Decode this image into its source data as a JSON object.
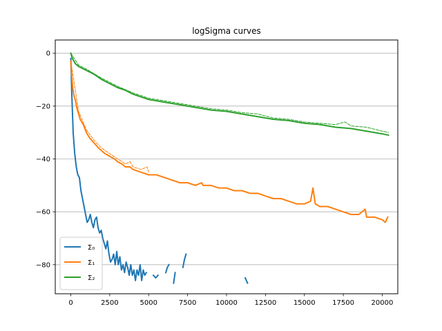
{
  "chart_data": {
    "type": "line",
    "title": "logSigma curves",
    "xlabel": "",
    "ylabel": "",
    "xlim": [
      -1000,
      21000
    ],
    "ylim": [
      -91,
      5
    ],
    "xticks": [
      0,
      2500,
      5000,
      7500,
      10000,
      12500,
      15000,
      17500,
      20000
    ],
    "xtick_labels": [
      "0",
      "2500",
      "5000",
      "7500",
      "10000",
      "12500",
      "15000",
      "17500",
      "20000"
    ],
    "yticks": [
      0,
      -20,
      -40,
      -60,
      -80
    ],
    "ytick_labels": [
      "0",
      "−20",
      "−40",
      "−60",
      "−80"
    ],
    "grid": "y-axis",
    "legend_position": "lower-left",
    "legend": [
      "Σ₀",
      "Σ₁",
      "Σ₂"
    ],
    "series": [
      {
        "name": "Σ₀",
        "color": "#1f77b4",
        "style": "solid",
        "segments": [
          [
            [
              0,
              -2
            ],
            [
              60,
              -15
            ],
            [
              150,
              -30
            ],
            [
              250,
              -38
            ],
            [
              350,
              -43
            ],
            [
              450,
              -46
            ],
            [
              550,
              -47
            ],
            [
              650,
              -52
            ],
            [
              750,
              -55
            ],
            [
              850,
              -58
            ],
            [
              950,
              -61
            ],
            [
              1050,
              -64
            ],
            [
              1150,
              -63
            ],
            [
              1250,
              -61
            ],
            [
              1350,
              -64
            ],
            [
              1450,
              -66
            ],
            [
              1550,
              -63
            ],
            [
              1650,
              -62
            ],
            [
              1750,
              -66
            ],
            [
              1850,
              -68
            ],
            [
              1950,
              -67
            ],
            [
              2050,
              -70
            ],
            [
              2150,
              -72
            ],
            [
              2250,
              -74
            ],
            [
              2350,
              -71
            ],
            [
              2450,
              -76
            ],
            [
              2550,
              -79
            ],
            [
              2650,
              -78
            ],
            [
              2750,
              -76
            ],
            [
              2850,
              -80
            ],
            [
              2950,
              -75
            ],
            [
              3050,
              -80
            ],
            [
              3150,
              -77
            ],
            [
              3250,
              -82
            ],
            [
              3350,
              -80
            ],
            [
              3450,
              -83
            ],
            [
              3550,
              -79
            ],
            [
              3650,
              -81
            ],
            [
              3750,
              -84
            ],
            [
              3850,
              -80
            ],
            [
              3950,
              -84
            ],
            [
              4050,
              -82
            ],
            [
              4150,
              -86
            ],
            [
              4250,
              -82
            ],
            [
              4350,
              -84
            ],
            [
              4450,
              -80
            ],
            [
              4550,
              -86
            ],
            [
              4650,
              -82
            ],
            [
              4750,
              -84
            ],
            [
              4850,
              -83
            ]
          ],
          [
            [
              5300,
              -84
            ],
            [
              5450,
              -85
            ],
            [
              5600,
              -84
            ]
          ],
          [
            [
              6100,
              -83
            ],
            [
              6200,
              -81
            ],
            [
              6300,
              -80
            ]
          ],
          [
            [
              6600,
              -87
            ],
            [
              6700,
              -83
            ]
          ],
          [
            [
              7200,
              -81
            ],
            [
              7300,
              -78
            ],
            [
              7400,
              -76
            ]
          ],
          [
            [
              11200,
              -85
            ],
            [
              11350,
              -87
            ]
          ]
        ]
      },
      {
        "name": "Σ₁",
        "color": "#ff7f0e",
        "style": "solid",
        "points": [
          [
            0,
            -3
          ],
          [
            50,
            -8
          ],
          [
            120,
            -13
          ],
          [
            200,
            -16
          ],
          [
            300,
            -18
          ],
          [
            400,
            -21
          ],
          [
            500,
            -23
          ],
          [
            600,
            -25
          ],
          [
            800,
            -27
          ],
          [
            1000,
            -30
          ],
          [
            1200,
            -32
          ],
          [
            1500,
            -34
          ],
          [
            1800,
            -36
          ],
          [
            2000,
            -37
          ],
          [
            2200,
            -38
          ],
          [
            2500,
            -39
          ],
          [
            2800,
            -40
          ],
          [
            3000,
            -41
          ],
          [
            3300,
            -42
          ],
          [
            3500,
            -43
          ],
          [
            3800,
            -43
          ],
          [
            4000,
            -44
          ],
          [
            4500,
            -45
          ],
          [
            5000,
            -46
          ],
          [
            5500,
            -46
          ],
          [
            6000,
            -47
          ],
          [
            6500,
            -48
          ],
          [
            7000,
            -49
          ],
          [
            7500,
            -49
          ],
          [
            8000,
            -50
          ],
          [
            8400,
            -49
          ],
          [
            8500,
            -50
          ],
          [
            9000,
            -50
          ],
          [
            9500,
            -51
          ],
          [
            10000,
            -51
          ],
          [
            10500,
            -52
          ],
          [
            11000,
            -52
          ],
          [
            11500,
            -53
          ],
          [
            12000,
            -53
          ],
          [
            12500,
            -54
          ],
          [
            13000,
            -55
          ],
          [
            13500,
            -55
          ],
          [
            14000,
            -56
          ],
          [
            14500,
            -57
          ],
          [
            15000,
            -57
          ],
          [
            15400,
            -56
          ],
          [
            15550,
            -51
          ],
          [
            15700,
            -57
          ],
          [
            16000,
            -58
          ],
          [
            16500,
            -58
          ],
          [
            17000,
            -59
          ],
          [
            17500,
            -60
          ],
          [
            18000,
            -61
          ],
          [
            18500,
            -61
          ],
          [
            18900,
            -59
          ],
          [
            19000,
            -62
          ],
          [
            19500,
            -62
          ],
          [
            20000,
            -63
          ],
          [
            20200,
            -64
          ],
          [
            20350,
            -62
          ]
        ]
      },
      {
        "name": "Σ₁ (dashed)",
        "color": "#ff7f0e",
        "style": "dashed",
        "points": [
          [
            0,
            -3
          ],
          [
            500,
            -22
          ],
          [
            1000,
            -29
          ],
          [
            1500,
            -33
          ],
          [
            2000,
            -36
          ],
          [
            2500,
            -38
          ],
          [
            3000,
            -40
          ],
          [
            3300,
            -41
          ],
          [
            3500,
            -42
          ],
          [
            3800,
            -41
          ],
          [
            4000,
            -43
          ],
          [
            4500,
            -44
          ],
          [
            4900,
            -43
          ],
          [
            5000,
            -45
          ]
        ]
      },
      {
        "name": "Σ₂",
        "color": "#2ca02c",
        "style": "solid",
        "points": [
          [
            0,
            0
          ],
          [
            100,
            -2
          ],
          [
            200,
            -3
          ],
          [
            300,
            -4
          ],
          [
            500,
            -5
          ],
          [
            1000,
            -6.5
          ],
          [
            1500,
            -8
          ],
          [
            2000,
            -10
          ],
          [
            2500,
            -11.5
          ],
          [
            3000,
            -13
          ],
          [
            3500,
            -14
          ],
          [
            4000,
            -15.5
          ],
          [
            4500,
            -16.5
          ],
          [
            5000,
            -17.5
          ],
          [
            6000,
            -18.5
          ],
          [
            7000,
            -19.5
          ],
          [
            8000,
            -20.5
          ],
          [
            9000,
            -21.5
          ],
          [
            10000,
            -22
          ],
          [
            11000,
            -23
          ],
          [
            12000,
            -24
          ],
          [
            13000,
            -25
          ],
          [
            14000,
            -25.5
          ],
          [
            15000,
            -26.5
          ],
          [
            16000,
            -27
          ],
          [
            17000,
            -28
          ],
          [
            18000,
            -28.5
          ],
          [
            19000,
            -29.5
          ],
          [
            20000,
            -30.5
          ],
          [
            20400,
            -31
          ]
        ]
      },
      {
        "name": "Σ₂ (dashed)",
        "color": "#2ca02c",
        "style": "dashed",
        "points": [
          [
            0,
            0
          ],
          [
            500,
            -4.5
          ],
          [
            1000,
            -6
          ],
          [
            2000,
            -9.5
          ],
          [
            3000,
            -12.5
          ],
          [
            4000,
            -15
          ],
          [
            5000,
            -17
          ],
          [
            6000,
            -18
          ],
          [
            7000,
            -19
          ],
          [
            8000,
            -20
          ],
          [
            9000,
            -21
          ],
          [
            10000,
            -21.5
          ],
          [
            11000,
            -22.5
          ],
          [
            12000,
            -23
          ],
          [
            13000,
            -24.5
          ],
          [
            14000,
            -25
          ],
          [
            15000,
            -26
          ],
          [
            16000,
            -26.5
          ],
          [
            17000,
            -27
          ],
          [
            17600,
            -26
          ],
          [
            18000,
            -27.5
          ],
          [
            19000,
            -28
          ],
          [
            20000,
            -29.5
          ],
          [
            20400,
            -30
          ]
        ]
      }
    ]
  }
}
